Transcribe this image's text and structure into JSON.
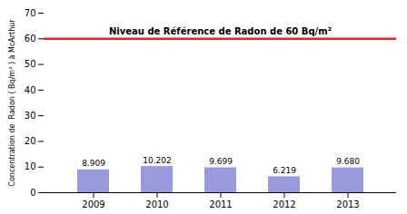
{
  "chart_data": {
    "type": "bar",
    "categories": [
      "2009",
      "2010",
      "2011",
      "2012",
      "2013"
    ],
    "values": [
      8.909,
      10.202,
      9.699,
      6.219,
      9.68
    ],
    "value_labels": [
      "8.909",
      "10.202",
      "9.699",
      "6.219",
      "9.680"
    ],
    "data_labels": true,
    "color": "#9999dd",
    "ylabel": "Concentration de  Radon ( Bq/m² ) à McArthur",
    "ylim": [
      0,
      70
    ],
    "yticks": [
      0,
      10,
      20,
      30,
      40,
      50,
      60,
      70
    ],
    "grid": false,
    "annotations": [
      {
        "type": "hline",
        "y": 60,
        "color": "#ee2222",
        "text": "Niveau de Référence de Radon de 60 Bq/m²"
      }
    ]
  }
}
